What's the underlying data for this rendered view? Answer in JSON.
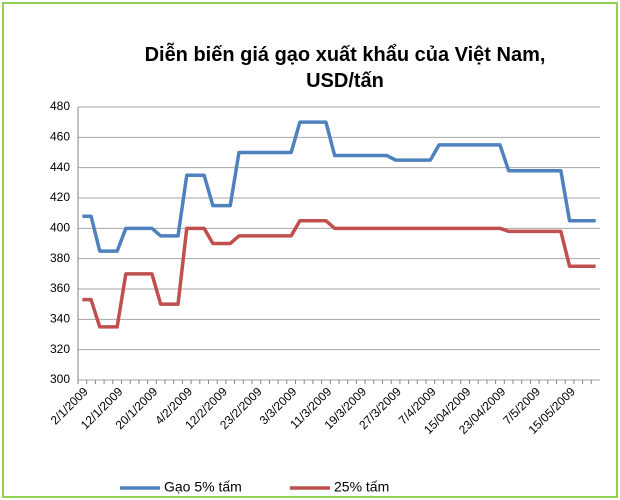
{
  "chart_data": {
    "type": "line",
    "title": "Diễn biến giá gạo xuất khẩu của Việt Nam, USD/tấn",
    "categories": [
      "2/1/2009",
      null,
      null,
      null,
      "12/1/2009",
      null,
      null,
      null,
      "20/1/2009",
      null,
      null,
      null,
      "4/2/2009",
      null,
      null,
      null,
      "12/2/2009",
      null,
      null,
      null,
      "23/2/2009",
      null,
      null,
      null,
      "3/3/2009",
      null,
      null,
      null,
      "11/3/2009",
      null,
      null,
      null,
      "19/3/2009",
      null,
      null,
      null,
      "27/3/2009",
      null,
      null,
      null,
      "7/4/2009",
      null,
      null,
      null,
      "15/04/2009",
      null,
      null,
      null,
      "23/04/2009",
      null,
      null,
      null,
      "7/5/2009",
      null,
      null,
      null,
      "15/05/2009",
      null,
      null,
      null
    ],
    "series": [
      {
        "name": "Gạo 5% tấm",
        "color": "#4f81bd",
        "values": [
          408,
          408,
          385,
          385,
          385,
          400,
          400,
          400,
          400,
          395,
          395,
          395,
          435,
          435,
          435,
          415,
          415,
          415,
          450,
          450,
          450,
          450,
          450,
          450,
          450,
          470,
          470,
          470,
          470,
          448,
          448,
          448,
          448,
          448,
          448,
          448,
          445,
          445,
          445,
          445,
          445,
          455,
          455,
          455,
          455,
          455,
          455,
          455,
          455,
          438,
          438,
          438,
          438,
          438,
          438,
          438,
          405,
          405,
          405,
          405
        ]
      },
      {
        "name": "25% tấm",
        "color": "#c0504d",
        "values": [
          353,
          353,
          335,
          335,
          335,
          370,
          370,
          370,
          370,
          350,
          350,
          350,
          400,
          400,
          400,
          390,
          390,
          390,
          395,
          395,
          395,
          395,
          395,
          395,
          395,
          405,
          405,
          405,
          405,
          400,
          400,
          400,
          400,
          400,
          400,
          400,
          400,
          400,
          400,
          400,
          400,
          400,
          400,
          400,
          400,
          400,
          400,
          400,
          400,
          398,
          398,
          398,
          398,
          398,
          398,
          398,
          375,
          375,
          375,
          375
        ]
      }
    ],
    "ylim": [
      300,
      480
    ],
    "yticks": [
      300,
      320,
      340,
      360,
      380,
      400,
      420,
      440,
      460,
      480
    ],
    "grid": true,
    "legend": "bottom"
  }
}
